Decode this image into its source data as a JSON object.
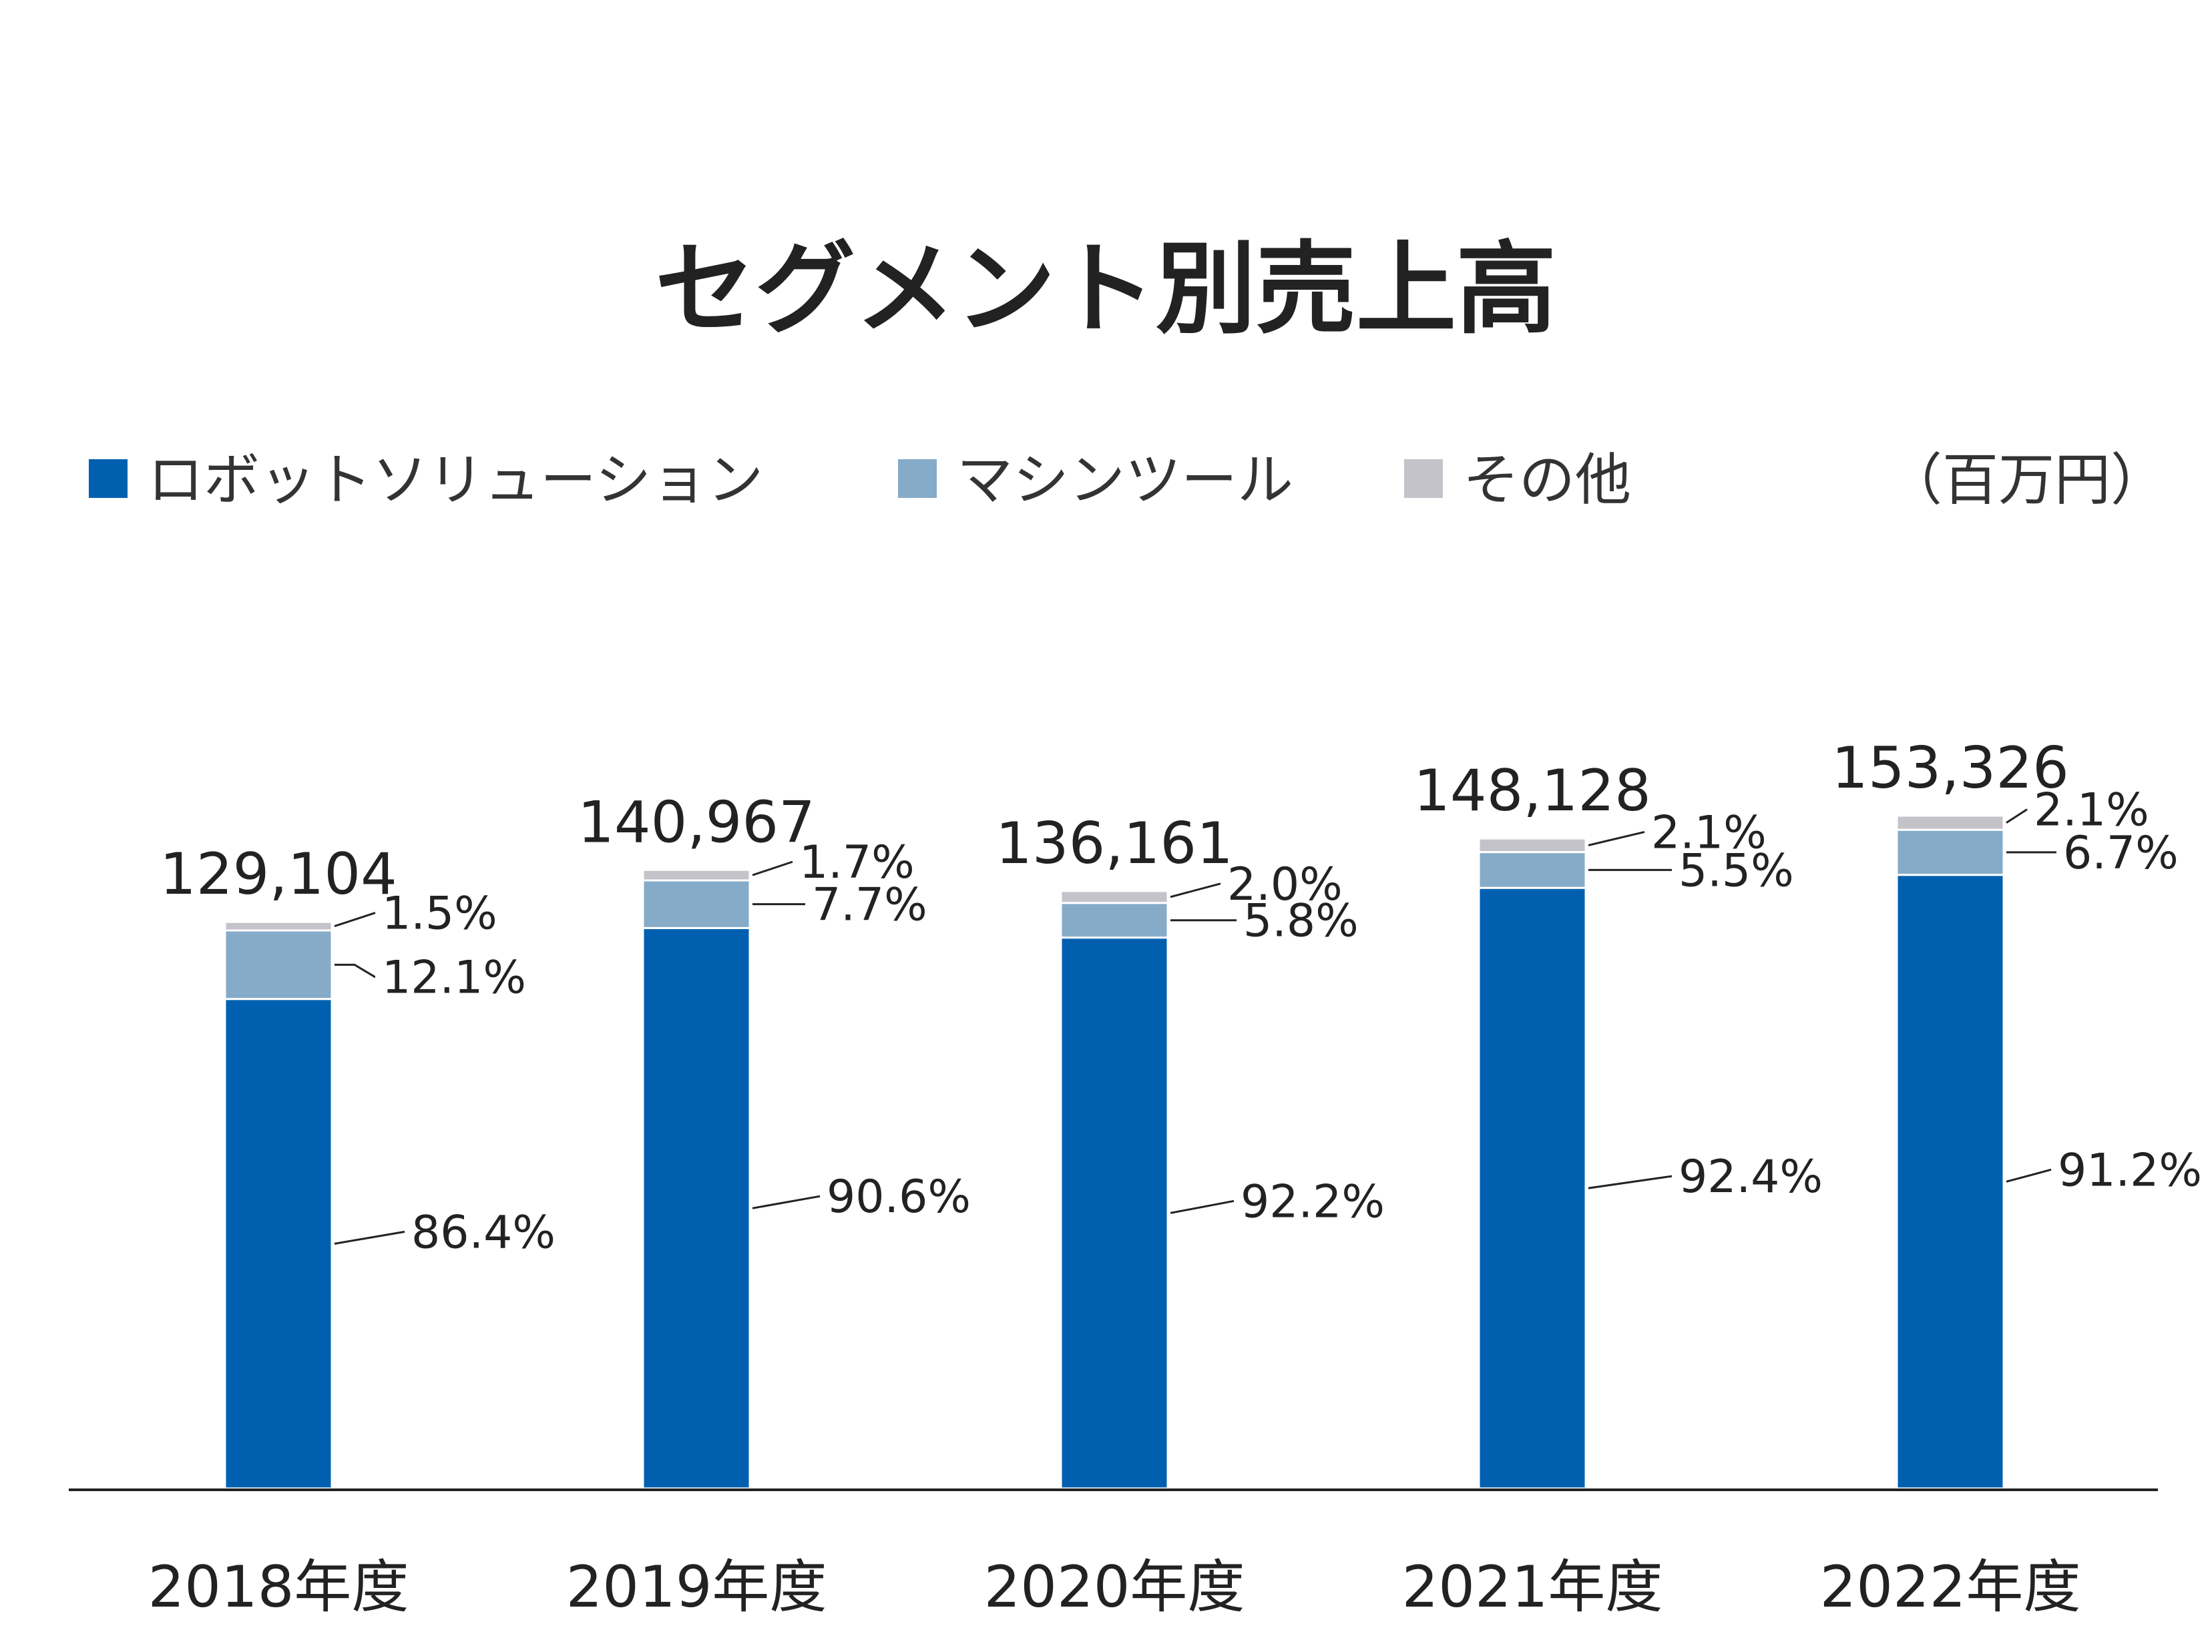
{
  "chart_data": {
    "type": "bar",
    "stacked": true,
    "title": "セグメント別売上高",
    "unit": "（百万円）",
    "categories": [
      "2018年度",
      "2019年度",
      "2020年度",
      "2021年度",
      "2022年度"
    ],
    "totals": [
      129104,
      140967,
      136161,
      148128,
      153326
    ],
    "total_labels": [
      "129,104",
      "140,967",
      "136,161",
      "148,128",
      "153,326"
    ],
    "series": [
      {
        "name": "ロボットソリューション",
        "color": "#0060AF",
        "percent": [
          86.4,
          90.6,
          92.2,
          92.4,
          91.2
        ],
        "labels": [
          "86.4%",
          "90.6%",
          "92.2%",
          "92.4%",
          "91.2%"
        ]
      },
      {
        "name": "マシンツール",
        "color": "#86ABC8",
        "percent": [
          12.1,
          7.7,
          5.8,
          5.5,
          6.7
        ],
        "labels": [
          "12.1%",
          "7.7%",
          "5.8%",
          "5.5%",
          "6.7%"
        ]
      },
      {
        "name": "その他",
        "color": "#C4C3CA",
        "percent": [
          1.5,
          1.7,
          2.0,
          2.1,
          2.1
        ],
        "labels": [
          "1.5%",
          "1.7%",
          "2.0%",
          "2.1%",
          "2.1%"
        ]
      }
    ],
    "ylim": [
      0,
      165000
    ],
    "grid": false,
    "legend_position": "top-left"
  }
}
